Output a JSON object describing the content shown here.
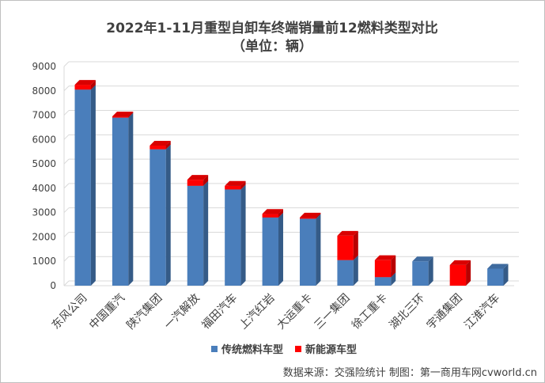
{
  "chart_data": {
    "type": "bar",
    "stacked": true,
    "title": "2022年1-11月重型自卸车终端销量前12燃料类型对比",
    "subtitle": "（单位：辆）",
    "categories": [
      "东风公司",
      "中国重汽",
      "陕汽集团",
      "一汽解放",
      "福田汽车",
      "上汽红岩",
      "大运重卡",
      "三一集团",
      "徐工重卡",
      "湖北三环",
      "宇通集团",
      "江淮汽车"
    ],
    "series": [
      {
        "name": "传统燃料车型",
        "color": "#4a7ebb",
        "values": [
          8050,
          6900,
          5600,
          4100,
          3950,
          2800,
          2750,
          1050,
          350,
          1000,
          0,
          700
        ]
      },
      {
        "name": "新能源车型",
        "color": "#ff0000",
        "values": [
          200,
          50,
          150,
          250,
          150,
          150,
          50,
          1000,
          700,
          0,
          850,
          0
        ]
      }
    ],
    "ylim": [
      0,
      9000
    ],
    "yticks": [
      "0",
      "1000",
      "2000",
      "3000",
      "4000",
      "5000",
      "6000",
      "7000",
      "8000",
      "9000"
    ],
    "grid": true,
    "legend_position": "bottom",
    "source": "数据来源：交强险统计  制图：第一商用车网cvworld.cn"
  }
}
